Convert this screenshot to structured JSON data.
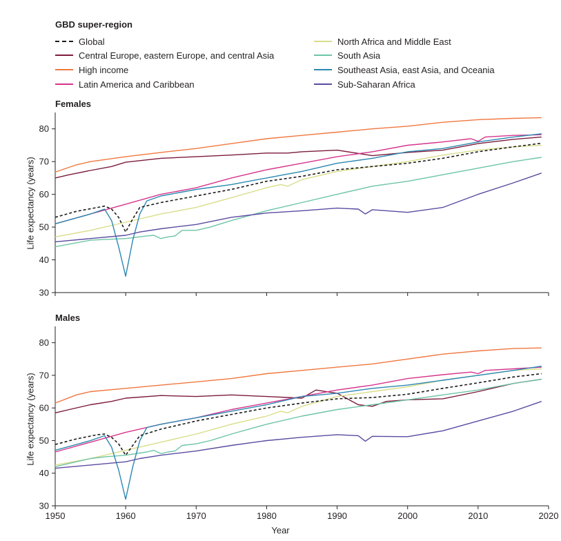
{
  "legend": {
    "title": "GBD super-region",
    "items": [
      {
        "label": "Global",
        "color": "#1a1a1a",
        "dashed": true
      },
      {
        "label": "Central Europe, eastern Europe, and central Asia",
        "color": "#7b1a3c",
        "dashed": false
      },
      {
        "label": "High income",
        "color": "#f0773e",
        "dashed": false
      },
      {
        "label": "Latin America and Caribbean",
        "color": "#d6338c",
        "dashed": false
      },
      {
        "label": "North Africa and Middle East",
        "color": "#d9dd8a",
        "dashed": false
      },
      {
        "label": "South Asia",
        "color": "#6cc4a4",
        "dashed": false
      },
      {
        "label": "Southeast Asia, east Asia, and Oceania",
        "color": "#2a87b0",
        "dashed": false
      },
      {
        "label": "Sub-Saharan Africa",
        "color": "#5a4aa0",
        "dashed": false
      }
    ]
  },
  "x_axis_label": "Year",
  "chart_data": [
    {
      "type": "line",
      "title": "Females",
      "xlabel": "Year",
      "ylabel": "Life expectancy (years)",
      "xlim": [
        1950,
        2020
      ],
      "ylim": [
        30,
        85
      ],
      "xticks": [
        "1950",
        "1960",
        "1970",
        "1980",
        "1990",
        "2000",
        "2010",
        "2020"
      ],
      "yticks": [
        "30",
        "40",
        "50",
        "60",
        "70",
        "80"
      ],
      "grid": false,
      "series": [
        {
          "name": "Global",
          "x": [
            1950,
            1953,
            1956,
            1957,
            1958,
            1959,
            1960,
            1961,
            1962,
            1965,
            1970,
            1975,
            1980,
            1985,
            1990,
            1995,
            2000,
            2005,
            2010,
            2015,
            2019
          ],
          "y": [
            53,
            54.8,
            56,
            56.4,
            55.5,
            53,
            48.5,
            52.5,
            56,
            57.5,
            59.5,
            61.5,
            64,
            65.5,
            67.5,
            68.5,
            69.5,
            71,
            73,
            74.5,
            75.6
          ]
        },
        {
          "name": "Central Europe, eastern Europe, and central Asia",
          "x": [
            1950,
            1952,
            1955,
            1958,
            1960,
            1965,
            1970,
            1975,
            1980,
            1983,
            1985,
            1990,
            1993,
            1995,
            2000,
            2005,
            2010,
            2015,
            2019
          ],
          "y": [
            65,
            66,
            67.3,
            68.5,
            69.8,
            71,
            71.5,
            72,
            72.6,
            72.6,
            73,
            73.5,
            72.5,
            71.8,
            72.8,
            73.5,
            75.5,
            76.8,
            77.5
          ]
        },
        {
          "name": "High income",
          "x": [
            1950,
            1953,
            1955,
            1960,
            1965,
            1970,
            1975,
            1980,
            1985,
            1990,
            1995,
            2000,
            2005,
            2010,
            2015,
            2019
          ],
          "y": [
            66.8,
            69,
            70,
            71.5,
            72.8,
            74,
            75.5,
            77,
            78,
            79,
            80,
            80.8,
            82,
            82.8,
            83.2,
            83.4
          ]
        },
        {
          "name": "Latin America and Caribbean",
          "x": [
            1950,
            1955,
            1960,
            1965,
            1970,
            1975,
            1980,
            1985,
            1990,
            1995,
            2000,
            2005,
            2009,
            2010,
            2011,
            2015,
            2019
          ],
          "y": [
            51,
            54,
            57,
            60,
            62,
            65,
            67.5,
            69.5,
            71.5,
            73,
            75,
            76,
            77,
            76.2,
            77.5,
            78,
            78.2
          ]
        },
        {
          "name": "North Africa and Middle East",
          "x": [
            1950,
            1955,
            1960,
            1965,
            1970,
            1975,
            1980,
            1982,
            1983,
            1985,
            1990,
            1995,
            2000,
            2005,
            2010,
            2015,
            2019
          ],
          "y": [
            47,
            49,
            51.5,
            54,
            56,
            59,
            62,
            63,
            62.5,
            64.5,
            67,
            68.5,
            70,
            72,
            73.5,
            74.5,
            75
          ]
        },
        {
          "name": "South Asia",
          "x": [
            1950,
            1955,
            1957,
            1960,
            1963,
            1964,
            1965,
            1966,
            1967,
            1968,
            1970,
            1972,
            1975,
            1980,
            1985,
            1990,
            1995,
            2000,
            2005,
            2010,
            2015,
            2019
          ],
          "y": [
            44,
            46,
            46.2,
            46.5,
            47.3,
            47.5,
            46.5,
            47,
            47.3,
            49,
            49,
            50,
            52,
            55,
            57.5,
            60,
            62.5,
            64,
            66,
            68,
            70,
            71.3
          ]
        },
        {
          "name": "Southeast Asia, east Asia, and Oceania",
          "x": [
            1950,
            1955,
            1957,
            1958,
            1959,
            1960,
            1961,
            1962,
            1963,
            1965,
            1970,
            1975,
            1980,
            1985,
            1990,
            1995,
            2000,
            2005,
            2010,
            2015,
            2019
          ],
          "y": [
            51,
            54,
            55.5,
            52,
            44,
            35,
            46,
            54,
            58,
            59.5,
            61.5,
            63,
            65,
            67,
            69.5,
            71,
            73,
            74,
            76,
            77.5,
            78.5
          ]
        },
        {
          "name": "Sub-Saharan Africa",
          "x": [
            1950,
            1955,
            1960,
            1962,
            1965,
            1970,
            1975,
            1980,
            1985,
            1990,
            1993,
            1994,
            1995,
            2000,
            2005,
            2010,
            2015,
            2019
          ],
          "y": [
            45.5,
            46.5,
            47.5,
            48.5,
            49.5,
            50.8,
            53,
            54.3,
            55,
            55.8,
            55.5,
            54,
            55.3,
            54.5,
            56,
            60,
            63.5,
            66.5
          ]
        }
      ]
    },
    {
      "type": "line",
      "title": "Males",
      "xlabel": "Year",
      "ylabel": "Life expectancy (years)",
      "xlim": [
        1950,
        2020
      ],
      "ylim": [
        30,
        85
      ],
      "xticks": [
        "1950",
        "1960",
        "1970",
        "1980",
        "1990",
        "2000",
        "2010",
        "2020"
      ],
      "yticks": [
        "30",
        "40",
        "50",
        "60",
        "70",
        "80"
      ],
      "grid": false,
      "series": [
        {
          "name": "Global",
          "x": [
            1950,
            1953,
            1956,
            1957,
            1958,
            1959,
            1960,
            1961,
            1962,
            1965,
            1970,
            1975,
            1980,
            1985,
            1990,
            1995,
            2000,
            2005,
            2010,
            2015,
            2019
          ],
          "y": [
            48.8,
            50.5,
            51.8,
            52,
            51,
            49,
            45.5,
            48.5,
            51.5,
            53.5,
            56,
            58,
            60,
            61.5,
            62.8,
            63.2,
            64.2,
            66,
            67.7,
            69.5,
            70.5
          ]
        },
        {
          "name": "Central Europe, eastern Europe, and central Asia",
          "x": [
            1950,
            1952,
            1955,
            1958,
            1960,
            1965,
            1970,
            1975,
            1980,
            1985,
            1987,
            1990,
            1993,
            1995,
            1997,
            2000,
            2005,
            2010,
            2015,
            2019
          ],
          "y": [
            58.5,
            59.5,
            61,
            62,
            63,
            63.8,
            63.5,
            64,
            63.5,
            63,
            65.5,
            64.5,
            61,
            60.5,
            62,
            62.5,
            62.8,
            65,
            67.5,
            68.8
          ]
        },
        {
          "name": "High income",
          "x": [
            1950,
            1953,
            1955,
            1960,
            1965,
            1970,
            1975,
            1980,
            1985,
            1990,
            1995,
            2000,
            2005,
            2010,
            2015,
            2019
          ],
          "y": [
            61.5,
            64,
            65,
            66,
            67,
            68,
            69,
            70.5,
            71.5,
            72.5,
            73.5,
            75,
            76.5,
            77.5,
            78.2,
            78.4
          ]
        },
        {
          "name": "Latin America and Caribbean",
          "x": [
            1950,
            1955,
            1960,
            1965,
            1970,
            1975,
            1980,
            1985,
            1990,
            1995,
            2000,
            2005,
            2009,
            2010,
            2011,
            2015,
            2019
          ],
          "y": [
            46.5,
            49.5,
            52.5,
            55,
            57,
            59.5,
            61.5,
            63.5,
            65.5,
            67,
            69,
            70.2,
            71,
            70.5,
            71.5,
            72,
            72.5
          ]
        },
        {
          "name": "North Africa and Middle East",
          "x": [
            1950,
            1955,
            1960,
            1965,
            1970,
            1975,
            1980,
            1982,
            1983,
            1985,
            1990,
            1995,
            2000,
            2005,
            2010,
            2015,
            2019
          ],
          "y": [
            42.5,
            44.5,
            47,
            49.5,
            52,
            55,
            57.5,
            59,
            58.5,
            60.5,
            63.5,
            65,
            66.5,
            68.5,
            70,
            71.5,
            72
          ]
        },
        {
          "name": "South Asia",
          "x": [
            1950,
            1955,
            1957,
            1960,
            1963,
            1964,
            1965,
            1966,
            1967,
            1968,
            1970,
            1972,
            1975,
            1980,
            1985,
            1990,
            1995,
            2000,
            2005,
            2010,
            2015,
            2019
          ],
          "y": [
            42,
            44.5,
            45,
            45.5,
            46.5,
            47,
            46,
            46.5,
            46.8,
            48.5,
            49,
            50,
            52,
            55,
            57.5,
            59.5,
            61,
            62.5,
            64,
            65.5,
            67.5,
            68.8
          ]
        },
        {
          "name": "Southeast Asia, east Asia, and Oceania",
          "x": [
            1950,
            1955,
            1957,
            1958,
            1959,
            1960,
            1961,
            1962,
            1963,
            1965,
            1970,
            1975,
            1980,
            1985,
            1990,
            1995,
            2000,
            2005,
            2010,
            2015,
            2019
          ],
          "y": [
            47,
            50,
            51.5,
            48,
            41,
            32,
            42,
            50,
            54,
            55,
            57,
            59,
            61,
            63.5,
            64.5,
            66,
            67,
            68.5,
            70,
            71.5,
            72.8
          ]
        },
        {
          "name": "Sub-Saharan Africa",
          "x": [
            1950,
            1955,
            1960,
            1962,
            1965,
            1970,
            1975,
            1980,
            1985,
            1990,
            1993,
            1994,
            1995,
            2000,
            2005,
            2010,
            2015,
            2019
          ],
          "y": [
            41.5,
            42.5,
            43.5,
            44.5,
            45.5,
            46.8,
            48.5,
            50,
            51,
            51.8,
            51.5,
            49.8,
            51.3,
            51.2,
            53,
            56,
            59,
            62
          ]
        }
      ]
    }
  ]
}
